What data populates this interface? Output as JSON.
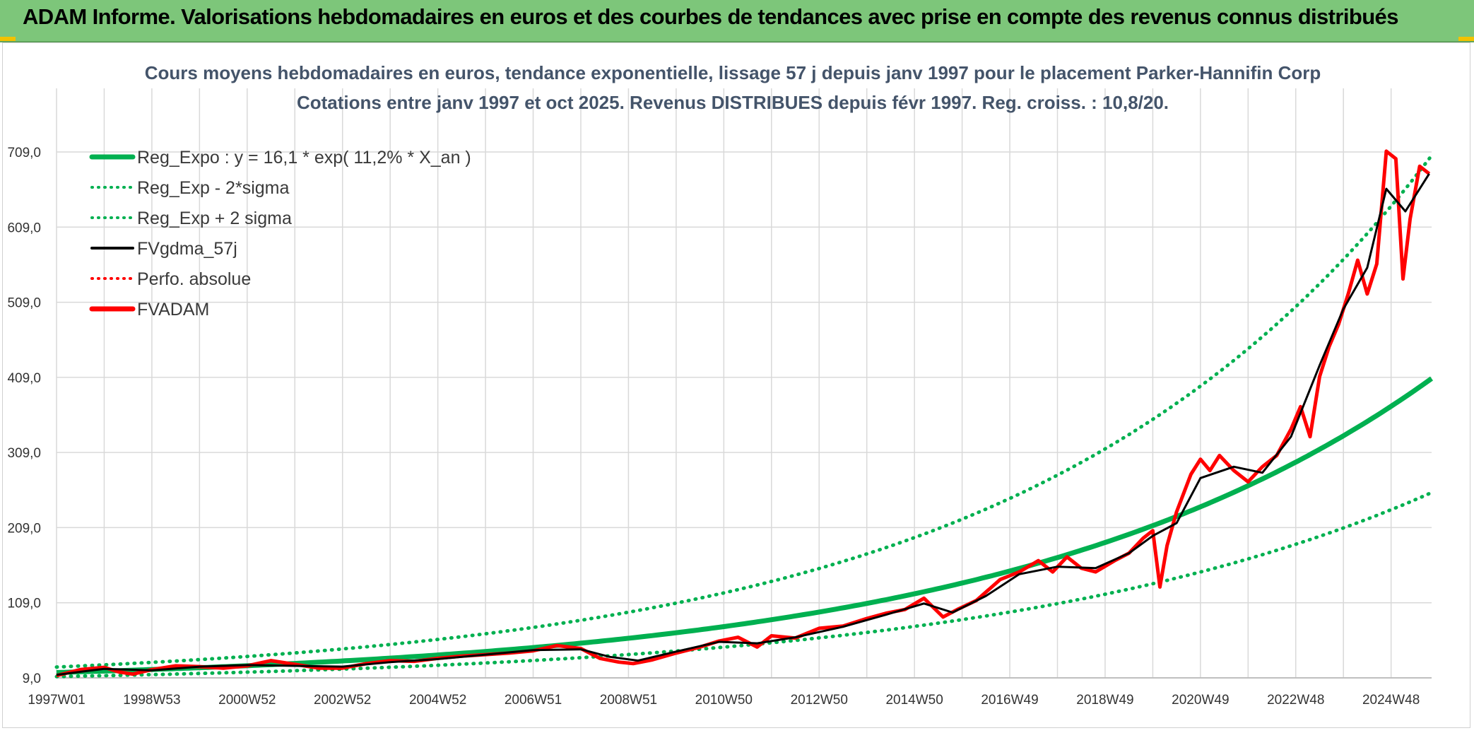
{
  "header": {
    "title": "ADAM Informe. Valorisations hebdomadaires en euros et des courbes de tendances avec prise en compte des revenus connus distribués"
  },
  "colors": {
    "banner": "#7dc67a",
    "reg_expo": "#00b050",
    "fvgdma": "#000000",
    "fvadam": "#ff0000",
    "grid": "#d9d9d9"
  },
  "chart_data": {
    "type": "line",
    "title_line1": "Cours moyens hebdomadaires en euros, tendance exponentielle, lissage 57 j depuis janv 1997 pour le placement Parker-Hannifin Corp",
    "title_line2": "Cotations entre janv 1997 et oct 2025. Revenus DISTRIBUES depuis févr 1997. Reg. croiss. : 10,8/20.",
    "ylim": [
      9,
      709
    ],
    "xlim": [
      1997.0,
      2025.85
    ],
    "yticks": [
      9,
      109,
      209,
      309,
      409,
      509,
      609,
      709
    ],
    "ytick_labels": [
      "9,0",
      "109,0",
      "209,0",
      "309,0",
      "409,0",
      "509,0",
      "609,0",
      "709,0"
    ],
    "xticks": [
      1997.0,
      1999.0,
      2001.0,
      2003.0,
      2005.0,
      2007.0,
      2009.0,
      2011.0,
      2013.0,
      2015.0,
      2017.0,
      2019.0,
      2021.0,
      2023.0,
      2025.0
    ],
    "xtick_labels": [
      "1997W01",
      "1998W53",
      "2000W52",
      "2002W52",
      "2004W52",
      "2006W51",
      "2008W51",
      "2010W50",
      "2012W50",
      "2014W50",
      "2016W49",
      "2018W49",
      "2020W49",
      "2022W48",
      "2024W48"
    ],
    "legend": [
      {
        "label": "Reg_Expo : y = 16,1 * exp( 11,2% *  X_an )",
        "color": "#00b050",
        "style": "solid-thick"
      },
      {
        "label": "Reg_Exp - 2*sigma",
        "color": "#00b050",
        "style": "dotted"
      },
      {
        "label": "Reg_Exp + 2 sigma",
        "color": "#00b050",
        "style": "dotted"
      },
      {
        "label": "FVgdma_57j",
        "color": "#000000",
        "style": "solid"
      },
      {
        "label": "Perfo. absolue",
        "color": "#ff0000",
        "style": "dotted"
      },
      {
        "label": "FVADAM",
        "color": "#ff0000",
        "style": "solid-thick"
      }
    ],
    "series": [
      {
        "name": "Reg_Expo",
        "kind": "exp",
        "a": 16.1,
        "rate": 0.112
      },
      {
        "name": "Reg_Exp - 2*sigma",
        "kind": "exp",
        "a": 10.7,
        "rate": 0.11
      },
      {
        "name": "Reg_Exp + 2 sigma",
        "kind": "exp",
        "a": 23.4,
        "rate": 0.118
      },
      {
        "name": "FVADAM",
        "x": [
          1997.0,
          1997.5,
          1998.0,
          1998.3,
          1998.6,
          1999.0,
          1999.5,
          2000.0,
          2000.5,
          2001.0,
          2001.5,
          2002.0,
          2002.5,
          2003.0,
          2003.5,
          2004.0,
          2004.5,
          2005.0,
          2005.5,
          2006.0,
          2006.5,
          2007.0,
          2007.5,
          2008.0,
          2008.4,
          2008.8,
          2009.1,
          2009.5,
          2010.0,
          2010.5,
          2010.9,
          2011.3,
          2011.7,
          2012.0,
          2012.5,
          2013.0,
          2013.5,
          2014.0,
          2014.4,
          2014.8,
          2015.2,
          2015.6,
          2015.9,
          2016.3,
          2016.8,
          2017.2,
          2017.6,
          2017.9,
          2018.2,
          2018.5,
          2018.8,
          2019.2,
          2019.5,
          2019.8,
          2020.0,
          2020.15,
          2020.3,
          2020.5,
          2020.8,
          2021.0,
          2021.2,
          2021.4,
          2021.7,
          2022.0,
          2022.3,
          2022.6,
          2022.9,
          2023.1,
          2023.3,
          2023.5,
          2023.7,
          2023.9,
          2024.1,
          2024.3,
          2024.5,
          2024.7,
          2024.9,
          2025.1,
          2025.25,
          2025.4,
          2025.6,
          2025.8
        ],
        "y": [
          12,
          20,
          23,
          17,
          14,
          20,
          25,
          24,
          22,
          25,
          32,
          27,
          22,
          22,
          28,
          32,
          31,
          35,
          38,
          40,
          42,
          45,
          52,
          48,
          35,
          30,
          28,
          33,
          42,
          50,
          58,
          63,
          50,
          65,
          62,
          75,
          78,
          88,
          95,
          100,
          115,
          90,
          100,
          112,
          140,
          150,
          165,
          150,
          170,
          155,
          150,
          165,
          175,
          195,
          205,
          130,
          185,
          230,
          280,
          300,
          285,
          305,
          285,
          270,
          290,
          305,
          340,
          370,
          330,
          410,
          450,
          480,
          520,
          565,
          520,
          560,
          710,
          700,
          540,
          620,
          690,
          680
        ]
      },
      {
        "name": "FVgdma_57j",
        "x": [
          1997.0,
          1998.0,
          1999.0,
          2000.0,
          2001.0,
          2002.0,
          2003.0,
          2004.0,
          2005.0,
          2006.0,
          2007.0,
          2008.0,
          2008.6,
          2009.2,
          2010.0,
          2010.9,
          2011.7,
          2012.5,
          2013.5,
          2014.4,
          2015.2,
          2015.8,
          2016.5,
          2017.2,
          2018.0,
          2018.8,
          2019.5,
          2020.0,
          2020.5,
          2021.0,
          2021.7,
          2022.3,
          2022.9,
          2023.5,
          2024.0,
          2024.5,
          2024.9,
          2025.3,
          2025.8
        ],
        "y": [
          13,
          21,
          19,
          24,
          26,
          25,
          24,
          30,
          34,
          40,
          46,
          47,
          37,
          32,
          44,
          57,
          55,
          63,
          77,
          93,
          108,
          96,
          118,
          147,
          157,
          155,
          175,
          198,
          215,
          275,
          290,
          282,
          330,
          425,
          500,
          555,
          660,
          630,
          680
        ]
      }
    ]
  }
}
